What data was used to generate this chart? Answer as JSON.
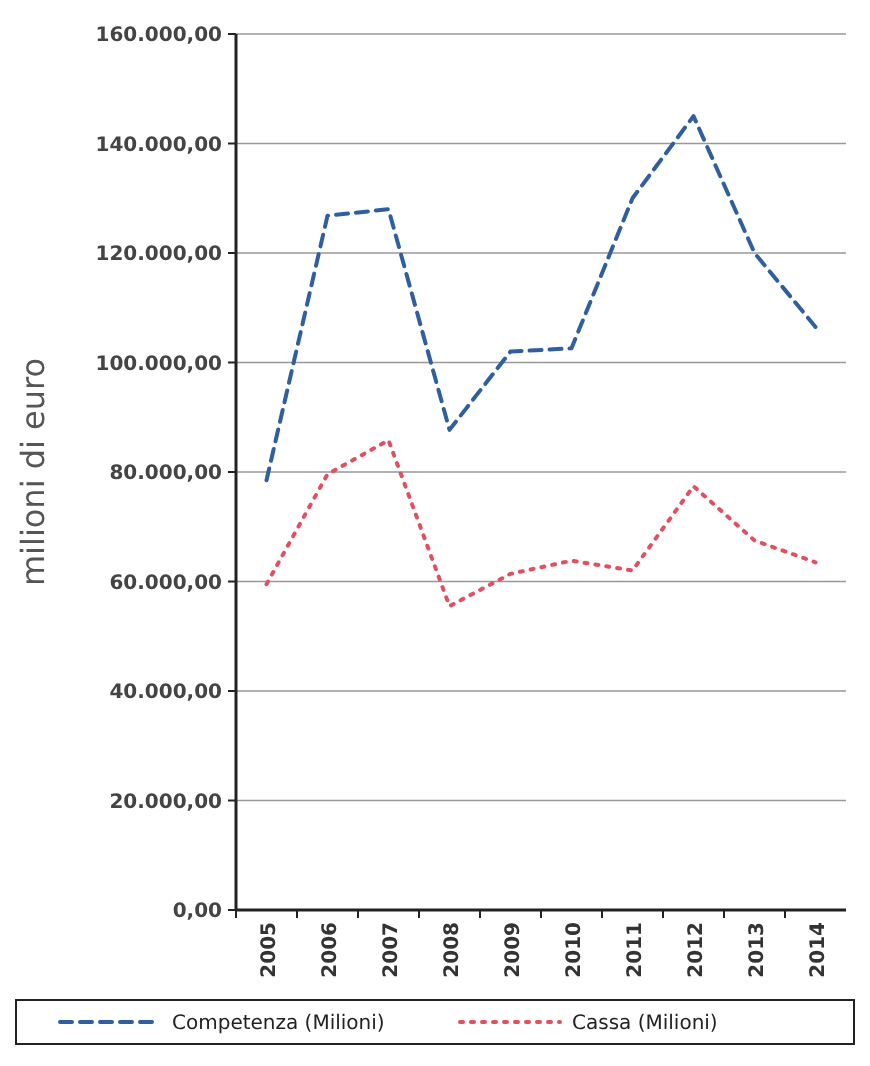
{
  "chart_data": {
    "type": "line",
    "ylabel": "milioni di euro",
    "categories": [
      "2005",
      "2006",
      "2007",
      "2008",
      "2009",
      "2010",
      "2011",
      "2012",
      "2013",
      "2014"
    ],
    "series": [
      {
        "name": "Competenza (Milioni)",
        "color": "#2f5f9e",
        "line_style": "dashed",
        "values": [
          78500,
          126800,
          128000,
          87700,
          102000,
          102600,
          130000,
          145000,
          120000,
          106500
        ]
      },
      {
        "name": "Cassa (Milioni)",
        "color": "#e05060",
        "line_style": "dotted",
        "values": [
          59500,
          79600,
          85800,
          55500,
          61400,
          63800,
          62000,
          77400,
          67500,
          63500
        ]
      }
    ],
    "ylim": [
      0,
      160000
    ],
    "yticks": [
      {
        "value": 0,
        "label": "0,00"
      },
      {
        "value": 20000,
        "label": "20.000,00"
      },
      {
        "value": 40000,
        "label": "40.000,00"
      },
      {
        "value": 60000,
        "label": "60.000,00"
      },
      {
        "value": 80000,
        "label": "80.000,00"
      },
      {
        "value": 100000,
        "label": "100.000,00"
      },
      {
        "value": 120000,
        "label": "120.000,00"
      },
      {
        "value": 140000,
        "label": "140.000,00"
      },
      {
        "value": 160000,
        "label": "160.000,00"
      }
    ],
    "grid": "y",
    "legend": "bottom",
    "marker": "none"
  }
}
